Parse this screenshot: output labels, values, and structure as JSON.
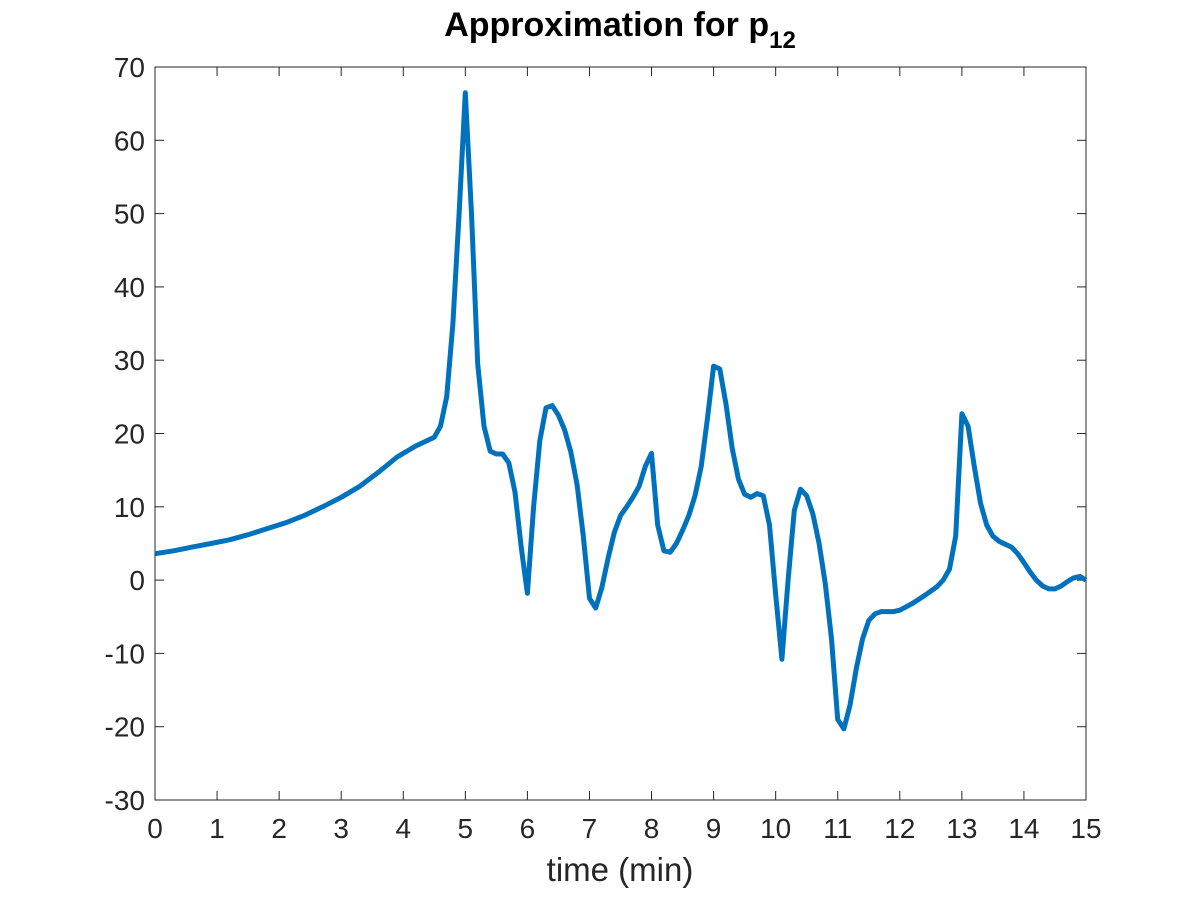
{
  "chart_data": {
    "type": "line",
    "title": "Approximation for ",
    "title_var": "p",
    "title_subscript": "12",
    "xlabel": "time (min)",
    "ylabel": "",
    "xlim": [
      0,
      15
    ],
    "ylim": [
      -30,
      70
    ],
    "xticks": [
      0,
      1,
      2,
      3,
      4,
      5,
      6,
      7,
      8,
      9,
      10,
      11,
      12,
      13,
      14,
      15
    ],
    "xtick_labels": [
      "0",
      "1",
      "2",
      "3",
      "4",
      "5",
      "6",
      "7",
      "8",
      "9",
      "10",
      "11",
      "12",
      "13",
      "14",
      "15"
    ],
    "yticks": [
      -30,
      -20,
      -10,
      0,
      10,
      20,
      30,
      40,
      50,
      60,
      70
    ],
    "ytick_labels": [
      "-30",
      "-20",
      "-10",
      "0",
      "10",
      "20",
      "30",
      "40",
      "50",
      "60",
      "70"
    ],
    "grid": false,
    "series": [
      {
        "name": "p12",
        "color": "#0072BD",
        "x": [
          0,
          0.3,
          0.6,
          0.9,
          1.2,
          1.5,
          1.8,
          2.1,
          2.4,
          2.7,
          3.0,
          3.3,
          3.6,
          3.9,
          4.2,
          4.5,
          4.6,
          4.7,
          4.8,
          4.9,
          5.0,
          5.1,
          5.2,
          5.3,
          5.4,
          5.5,
          5.6,
          5.7,
          5.8,
          5.9,
          6.0,
          6.1,
          6.2,
          6.3,
          6.4,
          6.5,
          6.6,
          6.7,
          6.8,
          6.9,
          7.0,
          7.1,
          7.2,
          7.3,
          7.4,
          7.5,
          7.6,
          7.7,
          7.8,
          7.9,
          8.0,
          8.1,
          8.2,
          8.3,
          8.4,
          8.5,
          8.6,
          8.7,
          8.8,
          8.9,
          9.0,
          9.1,
          9.2,
          9.3,
          9.4,
          9.5,
          9.6,
          9.7,
          9.8,
          9.9,
          10.0,
          10.1,
          10.2,
          10.3,
          10.4,
          10.5,
          10.6,
          10.7,
          10.8,
          10.9,
          11.0,
          11.1,
          11.2,
          11.3,
          11.4,
          11.5,
          11.6,
          11.7,
          11.8,
          11.9,
          12.0,
          12.2,
          12.4,
          12.6,
          12.7,
          12.8,
          12.9,
          13.0,
          13.1,
          13.2,
          13.3,
          13.4,
          13.5,
          13.6,
          13.8,
          13.9,
          14.0,
          14.1,
          14.2,
          14.3,
          14.4,
          14.5,
          14.6,
          14.7,
          14.8,
          14.9,
          15.0
        ],
        "y": [
          3.6,
          4.0,
          4.5,
          5.0,
          5.5,
          6.2,
          7.0,
          7.8,
          8.8,
          10.0,
          11.3,
          12.8,
          14.7,
          16.8,
          18.3,
          19.5,
          21.0,
          25.0,
          35.0,
          50.0,
          66.5,
          50.0,
          29.5,
          21.0,
          17.6,
          17.2,
          17.2,
          16.0,
          12.0,
          4.5,
          -1.8,
          10.0,
          19.0,
          23.5,
          23.8,
          22.5,
          20.5,
          17.5,
          13.0,
          6.0,
          -2.5,
          -3.8,
          -1.0,
          3.0,
          6.5,
          8.8,
          10.0,
          11.3,
          12.8,
          15.5,
          17.3,
          7.5,
          4.0,
          3.8,
          5.0,
          6.8,
          8.8,
          11.5,
          15.5,
          22.0,
          29.2,
          28.8,
          24.0,
          18.0,
          13.8,
          11.7,
          11.3,
          11.8,
          11.5,
          7.5,
          -2.0,
          -10.8,
          0.0,
          9.5,
          12.4,
          11.5,
          9.0,
          5.0,
          -0.5,
          -8.0,
          -19.0,
          -20.3,
          -17.0,
          -12.0,
          -8.0,
          -5.5,
          -4.6,
          -4.3,
          -4.3,
          -4.3,
          -4.1,
          -3.2,
          -2.1,
          -0.9,
          0.0,
          1.5,
          6.0,
          22.7,
          21.0,
          15.5,
          10.5,
          7.5,
          6.0,
          5.3,
          4.5,
          3.6,
          2.4,
          1.1,
          0.0,
          -0.8,
          -1.2,
          -1.2,
          -0.8,
          -0.2,
          0.3,
          0.5,
          0.0
        ]
      }
    ]
  }
}
